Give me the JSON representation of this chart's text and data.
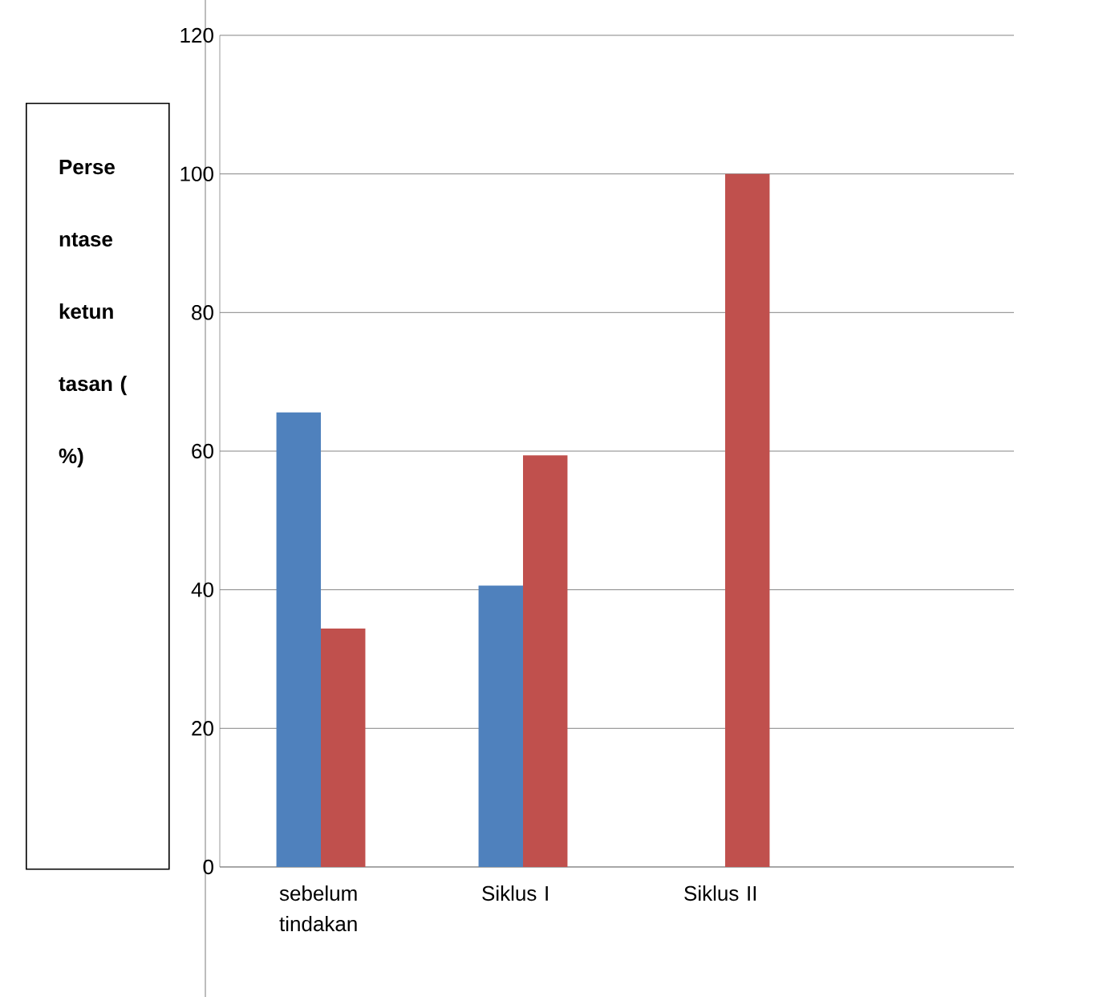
{
  "chart_data": {
    "type": "bar",
    "ylabel": "Perse ntase ketun tasan ( %)",
    "categories": [
      "sebelum tindakan",
      "Siklus I",
      "Siklus II",
      null
    ],
    "series": [
      {
        "color": "#4f81bd",
        "values": [
          65.6,
          40.6,
          0,
          null
        ]
      },
      {
        "color": "#c0504d",
        "values": [
          34.4,
          59.4,
          100,
          null
        ]
      }
    ],
    "ylim": [
      0,
      120
    ],
    "yticks": [
      0,
      20,
      40,
      60,
      80,
      100,
      120
    ],
    "grid": "y"
  }
}
